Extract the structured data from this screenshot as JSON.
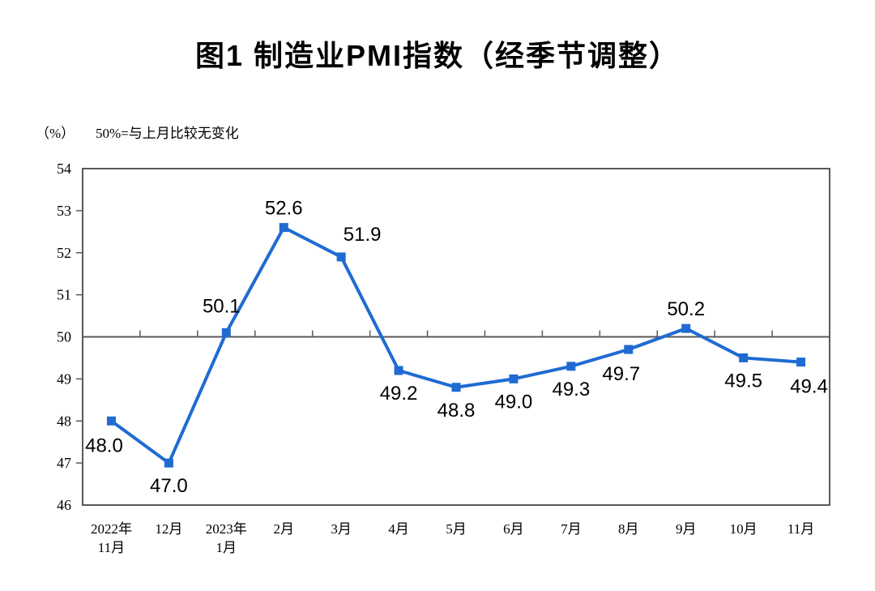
{
  "page": {
    "title": "图1 制造业PMI指数（经季节调整）",
    "unit_label": "（%）",
    "note": "50%=与上月比较无变化"
  },
  "colors": {
    "line": "#1f6bd2",
    "axis": "#595959",
    "text": "#000000",
    "background": "#ffffff"
  },
  "chart_data": {
    "type": "line",
    "title": "图1 制造业PMI指数（经季节调整）",
    "unit": "（%）",
    "annotation": "50%=与上月比较无变化",
    "categories": [
      "2022年\n11月",
      "12月",
      "2023年\n1月",
      "2月",
      "3月",
      "4月",
      "5月",
      "6月",
      "7月",
      "8月",
      "9月",
      "10月",
      "11月"
    ],
    "values": [
      48.0,
      47.0,
      50.1,
      52.6,
      51.9,
      49.2,
      48.8,
      49.0,
      49.3,
      49.7,
      50.2,
      49.5,
      49.4
    ],
    "data_labels": [
      "48.0",
      "47.0",
      "50.1",
      "52.6",
      "51.9",
      "49.2",
      "48.8",
      "49.0",
      "49.3",
      "49.7",
      "50.2",
      "49.5",
      "49.4"
    ],
    "label_positions": [
      "below-left",
      "below",
      "above-left",
      "above",
      "above-right",
      "below",
      "below",
      "below",
      "below",
      "below-left",
      "above",
      "below",
      "below-right"
    ],
    "ylim": [
      46,
      54
    ],
    "y_ticks": [
      46,
      47,
      48,
      49,
      50,
      51,
      52,
      53,
      54
    ],
    "reference_line": 50,
    "grid": false,
    "legend": "none",
    "marker": "square",
    "line_color": "#1f6bd2",
    "xlabel": "",
    "ylabel": "(%)"
  }
}
